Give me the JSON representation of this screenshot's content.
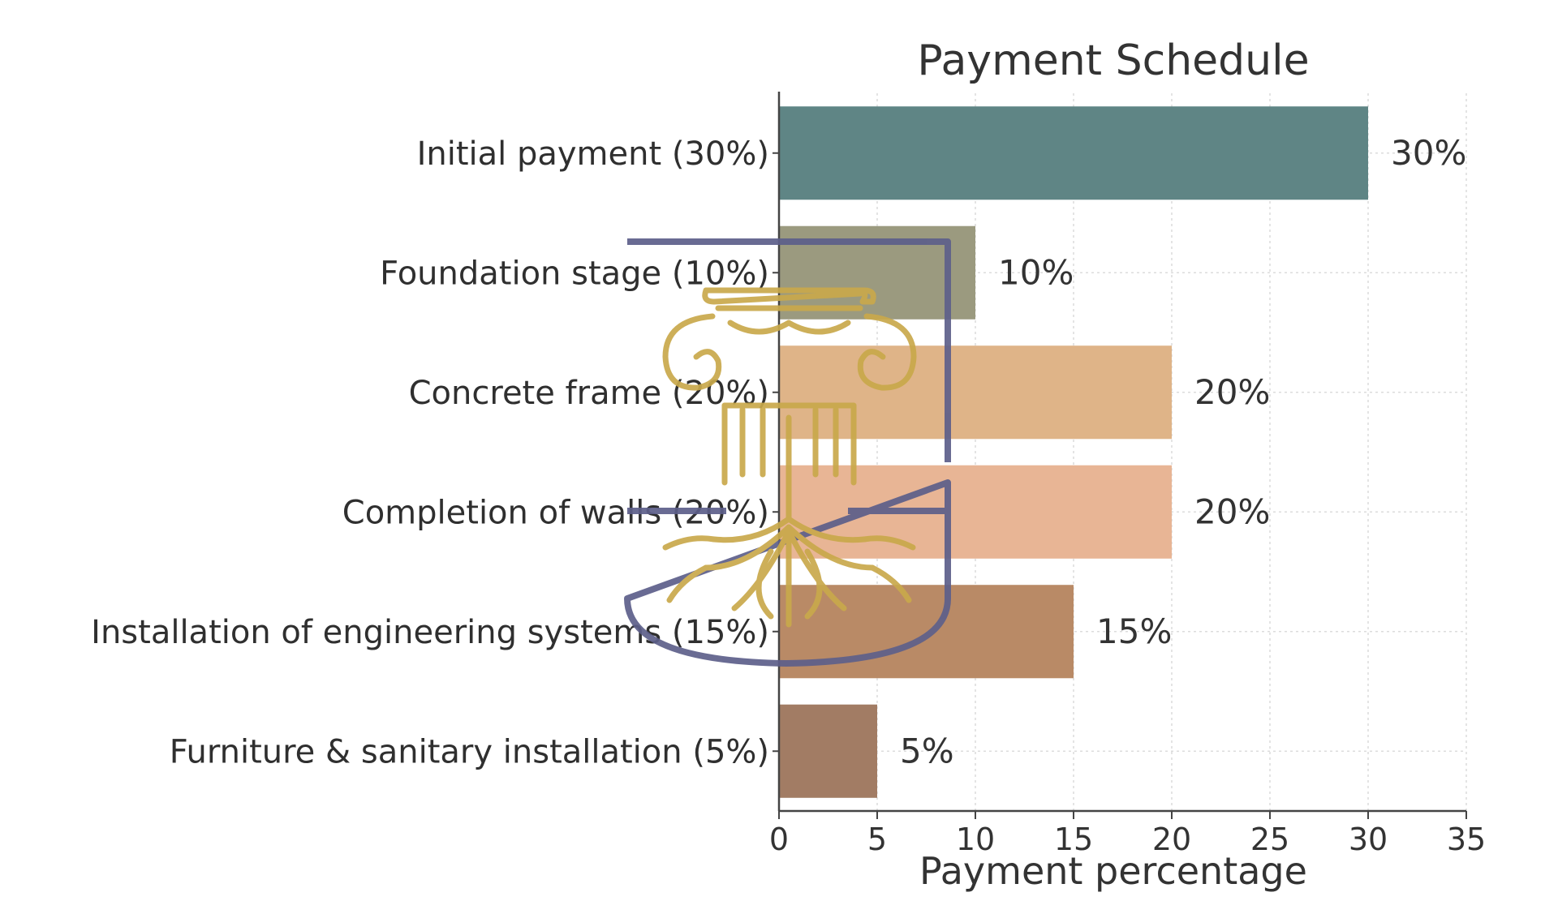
{
  "chart_data": {
    "type": "bar",
    "orientation": "horizontal",
    "title": "Payment Schedule",
    "xlabel": "Payment percentage",
    "ylabel": "",
    "categories": [
      "Initial payment (30%)",
      "Foundation stage (10%)",
      "Concrete frame (20%)",
      "Completion of walls (20%)",
      "Installation of engineering systems (15%)",
      "Furniture & sanitary installation (5%)"
    ],
    "values": [
      30,
      10,
      20,
      20,
      15,
      5
    ],
    "data_labels": [
      "30%",
      "10%",
      "20%",
      "20%",
      "15%",
      "5%"
    ],
    "bar_colors": [
      "#5f8585",
      "#9b9a7f",
      "#dfb488",
      "#e8b595",
      "#b98a66",
      "#a27c64"
    ],
    "xlim": [
      0,
      35
    ],
    "x_ticks": [
      0,
      5,
      10,
      15,
      20,
      25,
      30,
      35
    ],
    "grid": true,
    "legend": "none"
  },
  "watermark": {
    "type": "logo",
    "shield_color": "#5d5f8a",
    "emblem_color": "#c9a94b",
    "emblem-name": "column-with-roots-emblem"
  }
}
